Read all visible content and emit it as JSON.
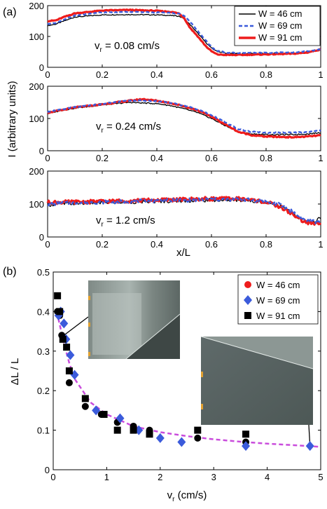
{
  "figure": {
    "panel_a_label": "(a)",
    "panel_b_label": "(b)",
    "colors": {
      "W46": "#000000",
      "W69": "#3b5bdb",
      "W91": "#ee1c1c",
      "fit": "#c94cdc"
    }
  },
  "chart_data": [
    {
      "type": "line",
      "panel": "a",
      "annotation_main": "v",
      "annotation_sub": "r",
      "annotation_rest": " = 0.08 cm/s",
      "xlim": [
        0,
        1
      ],
      "ylim": [
        0,
        200
      ],
      "xticks": [
        "0",
        "0.2",
        "0.4",
        "0.6",
        "0.8",
        "1"
      ],
      "yticks": [
        "0",
        "100",
        "200"
      ],
      "legend": [
        "W = 46 cm",
        "W = 69 cm",
        "W = 91 cm"
      ],
      "series": [
        {
          "name": "W = 46 cm",
          "x": [
            0,
            0.03,
            0.06,
            0.1,
            0.2,
            0.3,
            0.4,
            0.45,
            0.48,
            0.5,
            0.52,
            0.55,
            0.58,
            0.6,
            0.62,
            0.65,
            0.7,
            0.8,
            0.9,
            0.95,
            1.0
          ],
          "y": [
            135,
            140,
            150,
            163,
            170,
            171,
            170,
            168,
            166,
            158,
            140,
            110,
            80,
            62,
            52,
            46,
            44,
            45,
            46,
            50,
            56
          ]
        },
        {
          "name": "W = 69 cm",
          "x": [
            0,
            0.03,
            0.06,
            0.1,
            0.2,
            0.3,
            0.4,
            0.45,
            0.48,
            0.5,
            0.52,
            0.55,
            0.58,
            0.6,
            0.62,
            0.65,
            0.7,
            0.8,
            0.9,
            0.95,
            1.0
          ],
          "y": [
            140,
            143,
            155,
            168,
            178,
            180,
            178,
            176,
            174,
            168,
            150,
            118,
            86,
            66,
            54,
            48,
            46,
            47,
            48,
            52,
            58
          ]
        },
        {
          "name": "W = 91 cm",
          "x": [
            0,
            0.03,
            0.06,
            0.1,
            0.2,
            0.3,
            0.4,
            0.45,
            0.48,
            0.5,
            0.52,
            0.55,
            0.58,
            0.6,
            0.62,
            0.65,
            0.7,
            0.8,
            0.9,
            0.95,
            1.0
          ],
          "y": [
            150,
            152,
            163,
            175,
            184,
            186,
            183,
            180,
            175,
            160,
            130,
            100,
            68,
            52,
            42,
            40,
            40,
            42,
            44,
            48,
            58
          ]
        }
      ]
    },
    {
      "type": "line",
      "panel": "a",
      "annotation_main": "v",
      "annotation_sub": "r",
      "annotation_rest": " = 0.24 cm/s",
      "ylabel": "I (arbitrary units)",
      "xlim": [
        0,
        1
      ],
      "ylim": [
        0,
        200
      ],
      "xticks": [
        "0",
        "0.2",
        "0.4",
        "0.6",
        "0.8",
        "1"
      ],
      "yticks": [
        "0",
        "100",
        "200"
      ],
      "series": [
        {
          "name": "W = 46 cm",
          "x": [
            0,
            0.05,
            0.1,
            0.2,
            0.3,
            0.35,
            0.4,
            0.45,
            0.5,
            0.55,
            0.6,
            0.65,
            0.7,
            0.75,
            0.8,
            0.9,
            0.95,
            1.0
          ],
          "y": [
            115,
            125,
            132,
            142,
            150,
            148,
            146,
            140,
            130,
            118,
            100,
            78,
            58,
            52,
            50,
            50,
            52,
            56
          ]
        },
        {
          "name": "W = 69 cm",
          "x": [
            0,
            0.05,
            0.1,
            0.2,
            0.3,
            0.35,
            0.4,
            0.45,
            0.5,
            0.55,
            0.6,
            0.65,
            0.7,
            0.75,
            0.8,
            0.9,
            0.95,
            1.0
          ],
          "y": [
            120,
            128,
            135,
            145,
            156,
            156,
            154,
            148,
            140,
            128,
            110,
            88,
            66,
            58,
            56,
            56,
            58,
            62
          ]
        },
        {
          "name": "W = 91 cm",
          "x": [
            0,
            0.05,
            0.1,
            0.2,
            0.3,
            0.35,
            0.4,
            0.45,
            0.5,
            0.55,
            0.6,
            0.65,
            0.7,
            0.75,
            0.8,
            0.9,
            0.95,
            1.0
          ],
          "y": [
            118,
            126,
            134,
            144,
            155,
            160,
            155,
            148,
            138,
            125,
            106,
            82,
            58,
            48,
            44,
            42,
            44,
            48
          ]
        }
      ]
    },
    {
      "type": "line",
      "panel": "a",
      "annotation_main": "v",
      "annotation_sub": "r",
      "annotation_rest": " = 1.2 cm/s",
      "xlabel": "x/L",
      "xlim": [
        0,
        1
      ],
      "ylim": [
        0,
        200
      ],
      "xticks": [
        "0",
        "0.2",
        "0.4",
        "0.6",
        "0.8",
        "1"
      ],
      "yticks": [
        "0",
        "100",
        "200"
      ],
      "series": [
        {
          "name": "W = 46 cm",
          "x": [
            0,
            0.1,
            0.2,
            0.3,
            0.4,
            0.5,
            0.6,
            0.7,
            0.75,
            0.8,
            0.85,
            0.9,
            0.93,
            0.96,
            0.98,
            1.0
          ],
          "y": [
            98,
            102,
            104,
            106,
            108,
            110,
            112,
            112,
            110,
            106,
            95,
            70,
            52,
            45,
            48,
            60
          ]
        },
        {
          "name": "W = 69 cm",
          "x": [
            0,
            0.1,
            0.2,
            0.3,
            0.4,
            0.5,
            0.6,
            0.7,
            0.75,
            0.8,
            0.85,
            0.9,
            0.93,
            0.96,
            0.98,
            1.0
          ],
          "y": [
            100,
            104,
            106,
            108,
            110,
            112,
            114,
            114,
            112,
            108,
            98,
            75,
            55,
            48,
            46,
            50
          ]
        },
        {
          "name": "W = 91 cm",
          "x": [
            0,
            0.1,
            0.2,
            0.3,
            0.4,
            0.5,
            0.6,
            0.7,
            0.75,
            0.8,
            0.85,
            0.9,
            0.93,
            0.96,
            0.98,
            1.0
          ],
          "y": [
            105,
            106,
            108,
            110,
            112,
            114,
            116,
            116,
            112,
            106,
            92,
            68,
            50,
            42,
            40,
            42
          ]
        }
      ]
    },
    {
      "type": "scatter",
      "panel": "b",
      "ylabel": "ΔL / L",
      "xlabel_main": "v",
      "xlabel_sub": "r",
      "xlabel_rest": " (cm/s)",
      "xlim": [
        0,
        5
      ],
      "ylim": [
        0,
        0.5
      ],
      "xticks": [
        "0",
        "1",
        "2",
        "3",
        "4",
        "5"
      ],
      "yticks": [
        "0",
        "0.1",
        "0.2",
        "0.3",
        "0.4",
        "0.5"
      ],
      "legend": [
        "W = 46 cm",
        "W = 69 cm",
        "W = 91 cm"
      ],
      "series": [
        {
          "name": "W = 46 cm",
          "marker": "circle",
          "x": [
            0.08,
            0.12,
            0.16,
            0.2,
            0.3,
            0.6,
            0.9,
            1.2,
            1.5,
            1.8,
            2.7,
            3.6
          ],
          "y": [
            0.4,
            0.39,
            0.34,
            0.33,
            0.22,
            0.16,
            0.14,
            0.12,
            0.11,
            0.1,
            0.08,
            0.07
          ]
        },
        {
          "name": "W = 69 cm",
          "marker": "diamond",
          "x": [
            0.1,
            0.14,
            0.2,
            0.24,
            0.32,
            0.4,
            0.8,
            1.25,
            1.6,
            2.0,
            2.4,
            3.6,
            4.8
          ],
          "y": [
            0.39,
            0.4,
            0.37,
            0.33,
            0.29,
            0.24,
            0.15,
            0.13,
            0.1,
            0.08,
            0.07,
            0.06,
            0.06
          ]
        },
        {
          "name": "W = 91 cm",
          "marker": "square",
          "x": [
            0.08,
            0.12,
            0.18,
            0.25,
            0.3,
            0.6,
            0.95,
            1.2,
            1.5,
            1.8,
            2.7,
            3.6
          ],
          "y": [
            0.44,
            0.4,
            0.33,
            0.31,
            0.25,
            0.18,
            0.14,
            0.1,
            0.1,
            0.09,
            0.1,
            0.09
          ]
        },
        {
          "name": "fit",
          "kind": "dashed-curve",
          "x": [
            0.07,
            0.1,
            0.15,
            0.2,
            0.3,
            0.4,
            0.5,
            0.7,
            1.0,
            1.5,
            2.0,
            2.5,
            3.0,
            3.5,
            4.0,
            4.5,
            5.0
          ],
          "y": [
            0.4,
            0.38,
            0.35,
            0.32,
            0.27,
            0.23,
            0.21,
            0.17,
            0.14,
            0.11,
            0.095,
            0.085,
            0.077,
            0.071,
            0.066,
            0.062,
            0.058
          ]
        }
      ],
      "inset_arrows": [
        {
          "from_data": [
            0.2,
            0.34
          ]
        },
        {
          "from_data": [
            4.8,
            0.06
          ]
        }
      ]
    }
  ]
}
